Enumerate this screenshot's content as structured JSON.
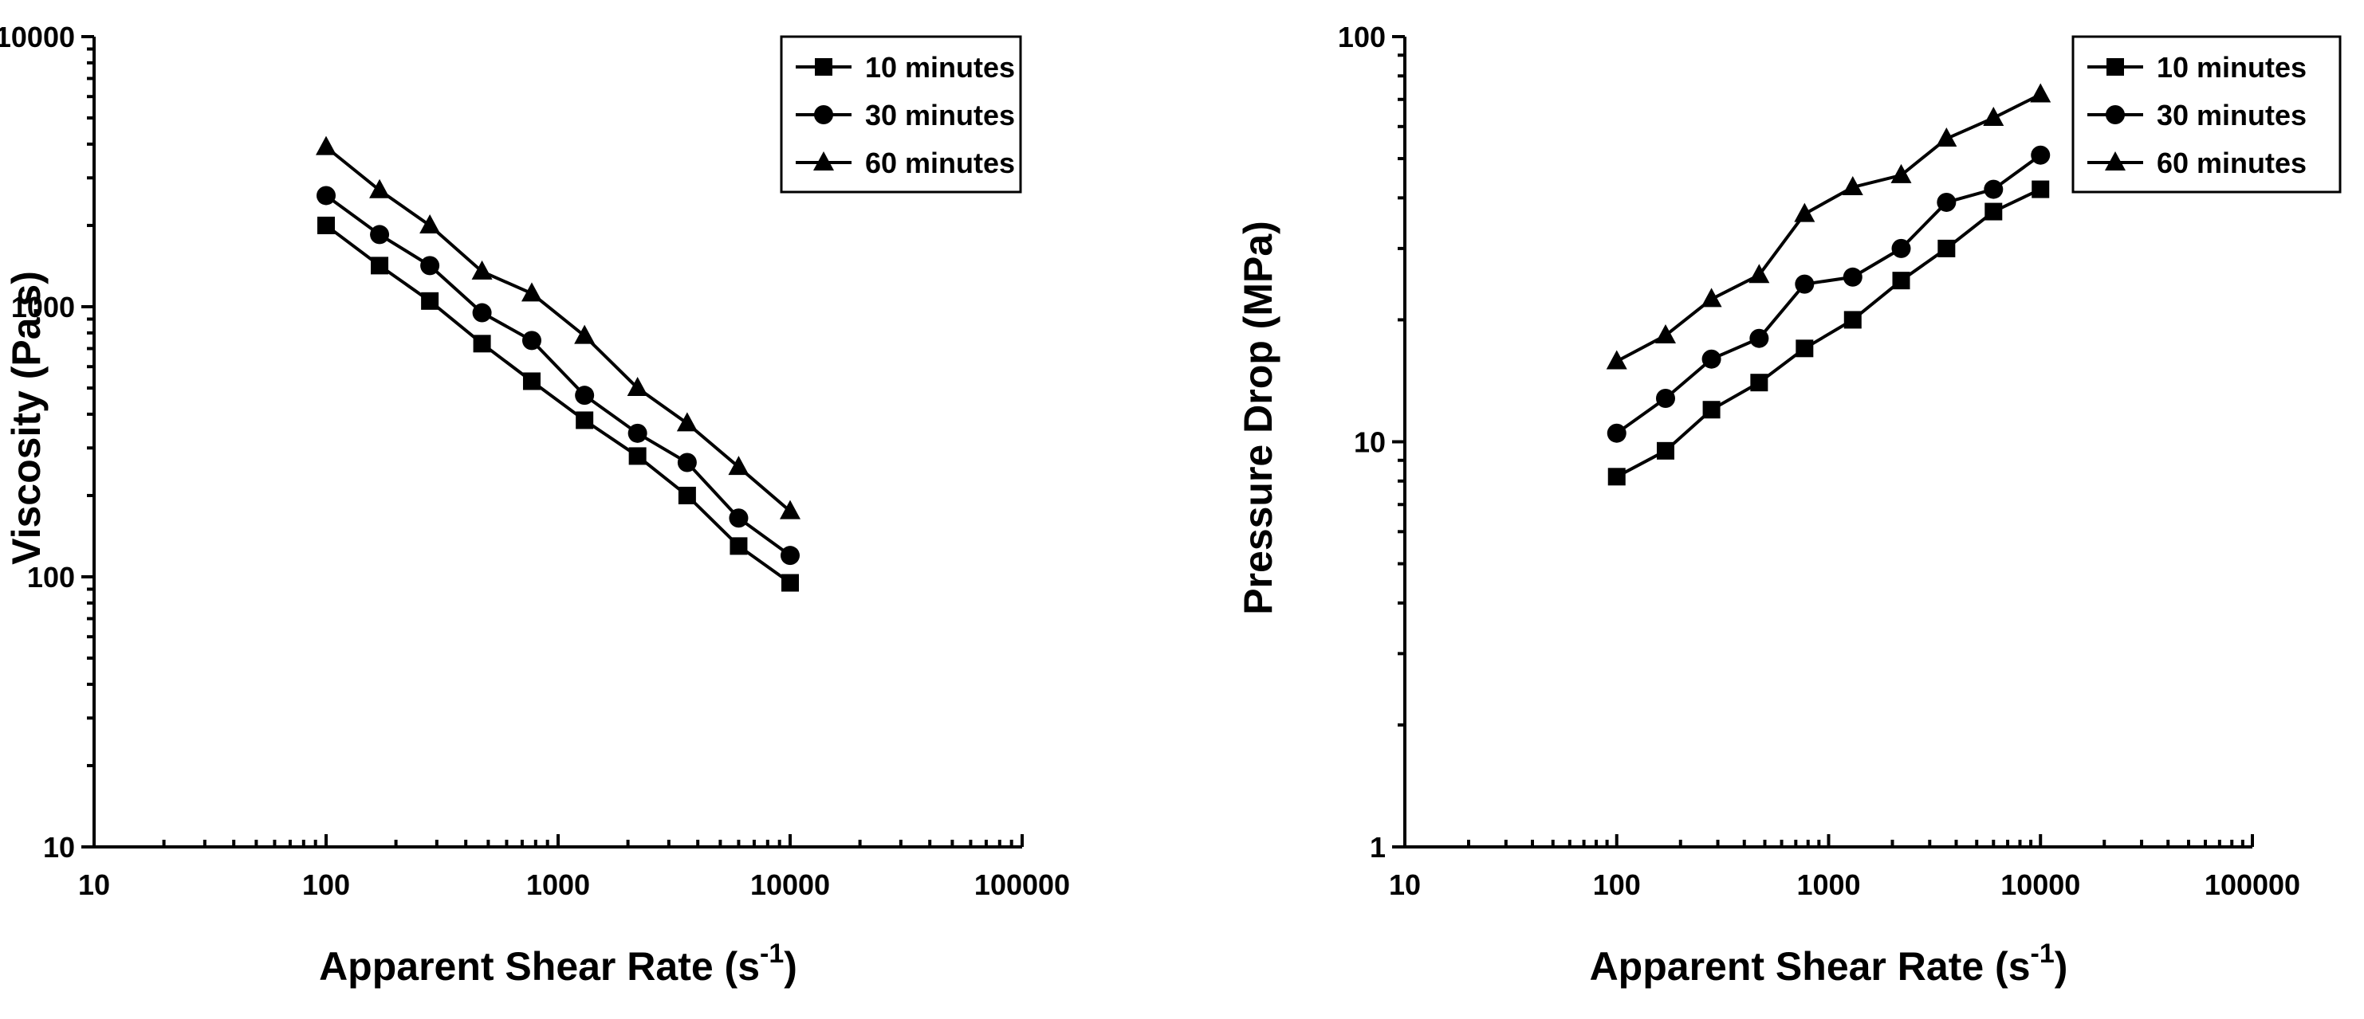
{
  "chart_data": [
    {
      "type": "line",
      "title": "",
      "xlabel": "Apparent Shear Rate (s",
      "xlabel_sup": "-1",
      "xlabel_end": ")",
      "ylabel": "Viscosity (Pa.s)",
      "xscale": "log",
      "yscale": "log",
      "xlim": [
        10,
        100000
      ],
      "ylim": [
        10,
        10000
      ],
      "xticks": [
        "10",
        "100",
        "1000",
        "10000",
        "100000"
      ],
      "yticks": [
        "10",
        "100",
        "1000",
        "10000"
      ],
      "legend_position": "top-right",
      "x": [
        100,
        170,
        280,
        470,
        770,
        1300,
        2200,
        3600,
        6000,
        10000
      ],
      "series": [
        {
          "name": "10 minutes",
          "marker": "square",
          "values": [
            2000,
            1420,
            1050,
            730,
            530,
            380,
            280,
            200,
            130,
            95
          ]
        },
        {
          "name": "30 minutes",
          "marker": "circle",
          "values": [
            2580,
            1850,
            1420,
            950,
            750,
            470,
            340,
            265,
            165,
            120
          ]
        },
        {
          "name": "60 minutes",
          "marker": "triangle",
          "values": [
            3900,
            2700,
            2000,
            1350,
            1120,
            780,
            500,
            370,
            255,
            175
          ]
        }
      ]
    },
    {
      "type": "line",
      "title": "",
      "xlabel": "Apparent Shear Rate (s",
      "xlabel_sup": "-1",
      "xlabel_end": ")",
      "ylabel": "Pressure Drop (MPa)",
      "xscale": "log",
      "yscale": "log",
      "xlim": [
        10,
        100000
      ],
      "ylim": [
        1,
        100
      ],
      "xticks": [
        "10",
        "100",
        "1000",
        "10000",
        "100000"
      ],
      "yticks": [
        "1",
        "10",
        "100"
      ],
      "legend_position": "top-right",
      "x": [
        100,
        170,
        280,
        470,
        770,
        1300,
        2200,
        3600,
        6000,
        10000
      ],
      "series": [
        {
          "name": "10 minutes",
          "marker": "square",
          "values": [
            8.2,
            9.5,
            12,
            14,
            17,
            20,
            25,
            30,
            37,
            42
          ]
        },
        {
          "name": "30 minutes",
          "marker": "circle",
          "values": [
            10.5,
            12.8,
            16,
            18,
            24.5,
            25.5,
            30,
            39,
            42,
            51
          ]
        },
        {
          "name": "60 minutes",
          "marker": "triangle",
          "values": [
            15.8,
            18.3,
            22.5,
            25.8,
            36.5,
            42.5,
            45.5,
            56,
            63,
            72
          ]
        }
      ]
    }
  ]
}
